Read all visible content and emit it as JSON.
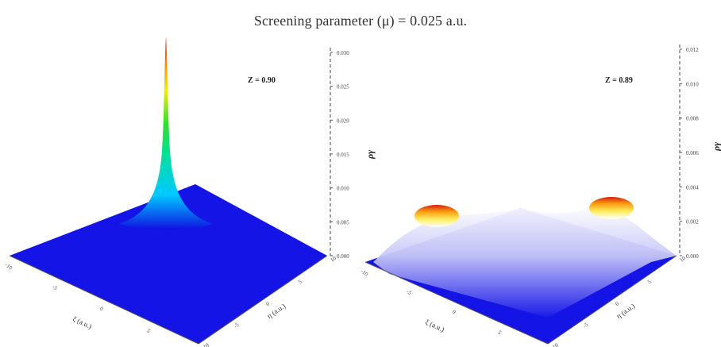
{
  "figure": {
    "title": "Screening parameter (μ) = 0.025 a.u."
  },
  "chart_data": [
    {
      "type": "surface",
      "annotation": "Z = 0.90",
      "zlabel": "ργ",
      "xlabel": "ξ (a.u.)",
      "ylabel": "η (a.u.)",
      "z_ticks": [
        "0.000",
        "0.005",
        "0.010",
        "0.015",
        "0.020",
        "0.025",
        "0.030"
      ],
      "zlim": [
        0,
        0.03
      ],
      "x_ticks": [
        "-10",
        "-5",
        "0",
        "5",
        "10"
      ],
      "y_ticks": [
        "-10",
        "-5",
        "0",
        "5",
        "10"
      ],
      "peak": {
        "x": 0,
        "y": 0,
        "z": 0.03
      },
      "colormap": [
        "#1010e0",
        "#00c8ff",
        "#00e0a0",
        "#30e030",
        "#f0f000",
        "#ff8000",
        "#c81010"
      ]
    },
    {
      "type": "surface",
      "annotation": "Z = 0.89",
      "zlabel": "ργ",
      "xlabel": "ξ (a.u.)",
      "ylabel": "η (a.u.)",
      "z_ticks": [
        "0.000",
        "0.002",
        "0.004",
        "0.006",
        "0.008",
        "0.010",
        "0.012"
      ],
      "zlim": [
        0,
        0.012
      ],
      "x_ticks": [
        "-10",
        "-5",
        "0",
        "5",
        "10"
      ],
      "y_ticks": [
        "-10",
        "-5",
        "0",
        "5",
        "10"
      ],
      "peaks": [
        {
          "x": -6,
          "y": -6,
          "z": 0.004
        },
        {
          "x": 6,
          "y": 6,
          "z": 0.004
        }
      ],
      "colormap": [
        "#1010e0",
        "#00c8ff",
        "#00e0a0",
        "#30e030",
        "#f0f000",
        "#ff8000",
        "#c81010"
      ]
    }
  ]
}
